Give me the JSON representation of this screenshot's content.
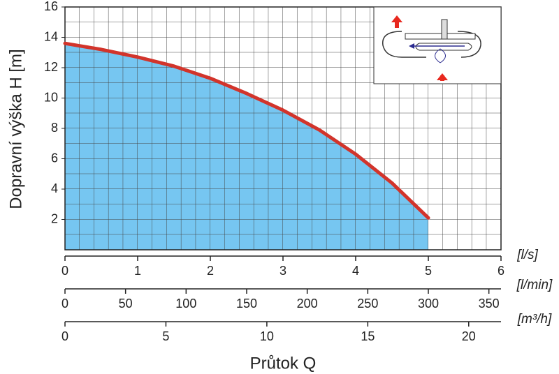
{
  "chart_data": {
    "type": "area",
    "x_label": "Průtok Q",
    "y_label": "Dopravní výška H [m]",
    "x": [
      0,
      0.5,
      1,
      1.5,
      2,
      2.5,
      3,
      3.5,
      4,
      4.5,
      5
    ],
    "series": [
      {
        "color": "#d2342b",
        "fill": "#76c6f1",
        "values": [
          13.6,
          13.2,
          12.7,
          12.1,
          11.3,
          10.3,
          9.2,
          7.9,
          6.3,
          4.4,
          2.1
        ]
      }
    ],
    "xlim": [
      0,
      6
    ],
    "xticks": [
      0,
      1,
      2,
      3,
      4,
      5,
      6
    ],
    "x_unit": "[l/s]",
    "ylim": [
      0,
      16
    ],
    "yticks": [
      2,
      4,
      6,
      8,
      10,
      12,
      14,
      16
    ],
    "grid": true,
    "x2lim": [
      0,
      360
    ],
    "x2ticks": [
      0,
      50,
      100,
      150,
      200,
      250,
      300,
      350
    ],
    "x2_unit": "[l/min]",
    "x3lim": [
      0,
      21.6
    ],
    "x3ticks": [
      0,
      5,
      10,
      15,
      20
    ],
    "x3_unit": "[m³/h]"
  }
}
